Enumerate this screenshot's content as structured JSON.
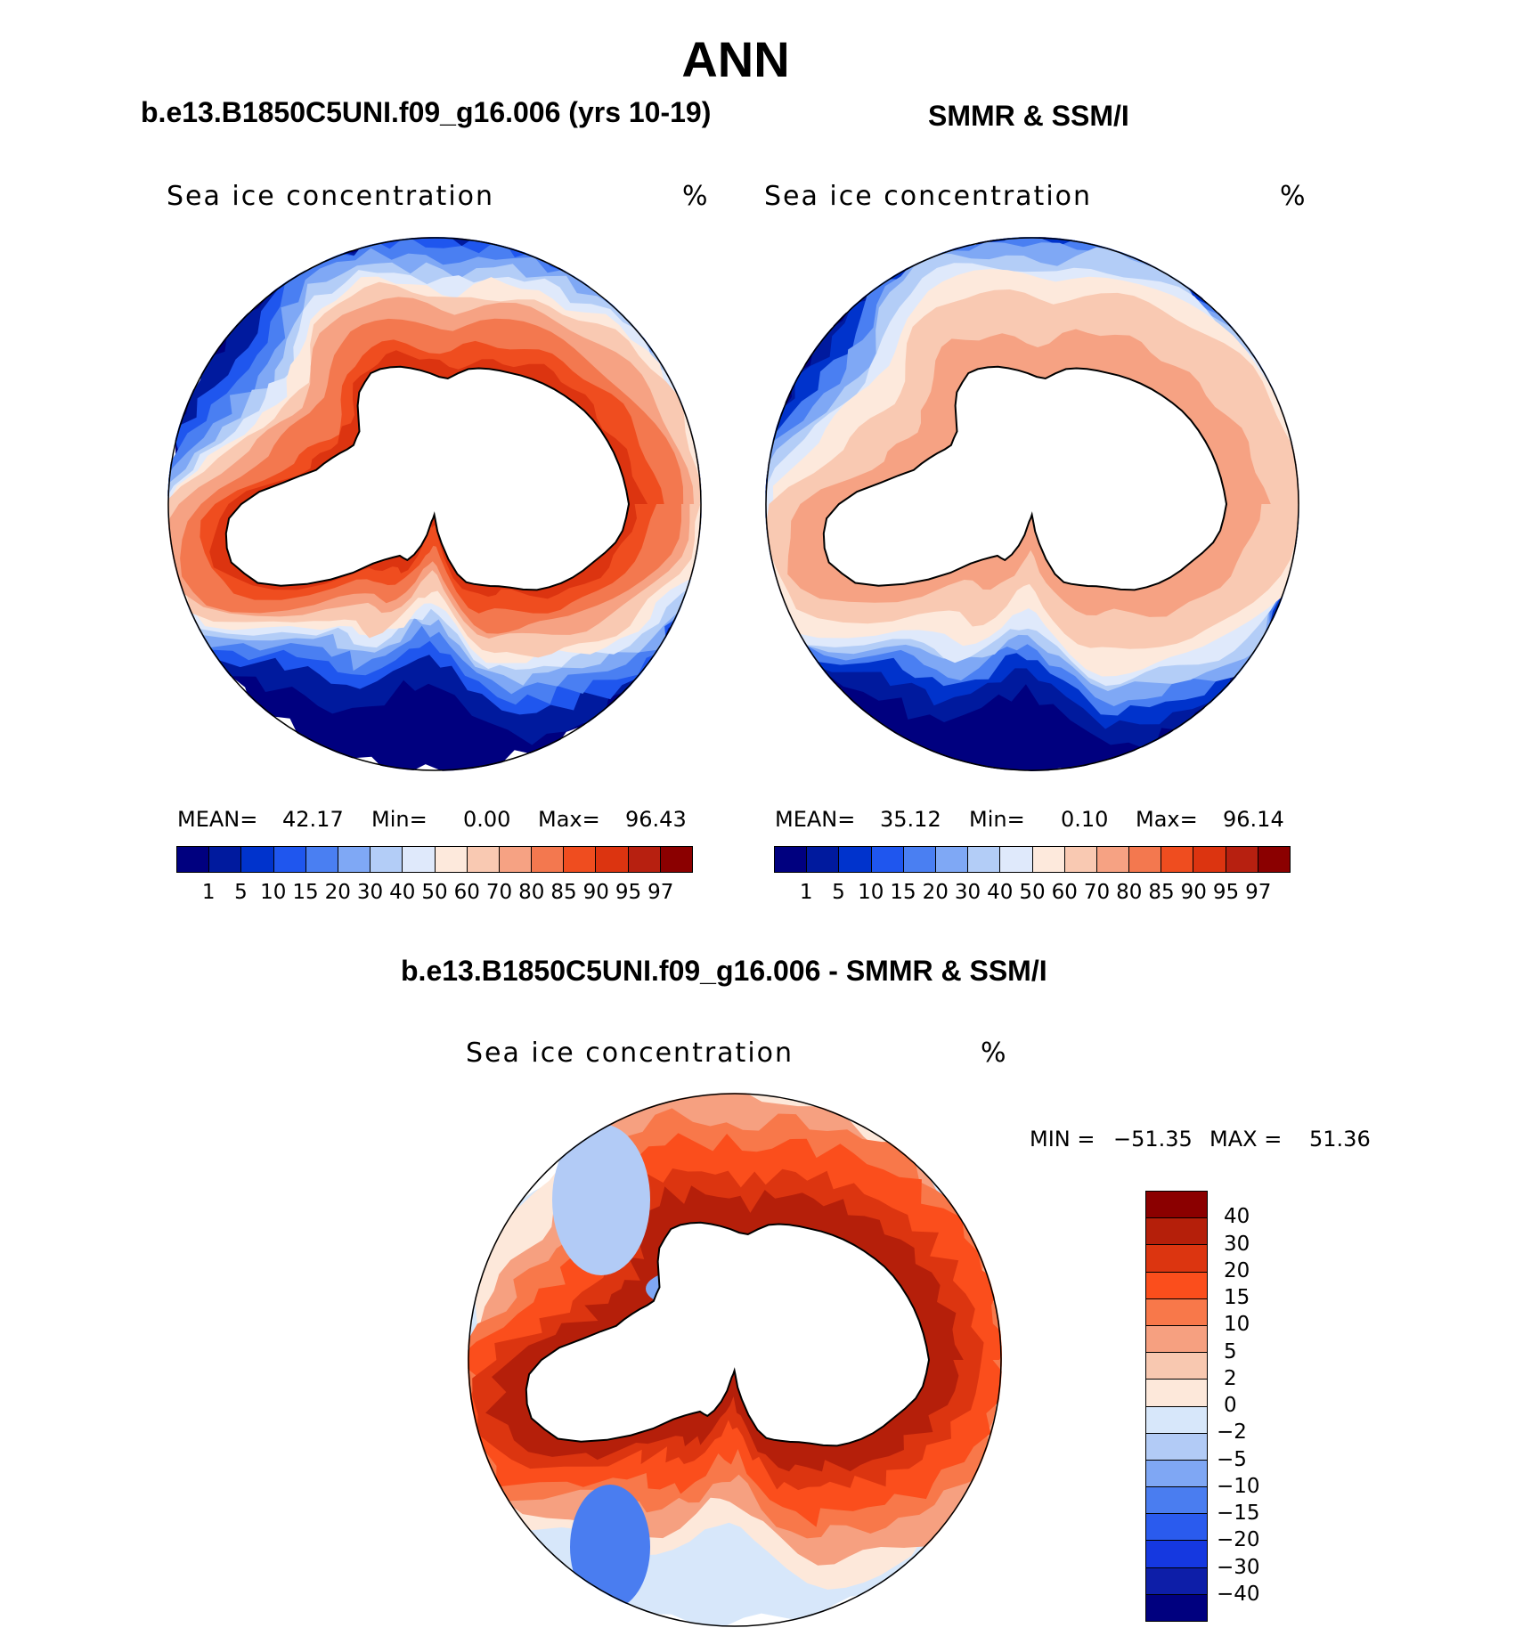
{
  "page_title": "ANN",
  "palettes": {
    "concentration": [
      "#00007f",
      "#001a9e",
      "#0033cc",
      "#1f56ee",
      "#4a7ff2",
      "#7fa8f5",
      "#b3cdf7",
      "#dfe9fb",
      "#fde9dc",
      "#f9c9b2",
      "#f6a283",
      "#f3784f",
      "#ef4d1f",
      "#dc3410",
      "#b72010",
      "#8b0000"
    ],
    "difference": [
      "#8b0000",
      "#b51f0a",
      "#dc3510",
      "#fb4e1c",
      "#f8784a",
      "#f6a080",
      "#f8c8b0",
      "#fde8da",
      "#d7e7fa",
      "#b2cbf6",
      "#7fa7f4",
      "#4a7df0",
      "#2a5bee",
      "#1538e0",
      "#0d1ea8",
      "#00007f"
    ]
  },
  "chart_data": [
    {
      "type": "heatmap",
      "panel": "model",
      "title": "b.e13.B1850C5UNI.f09_g16.006 (yrs 10-19)",
      "variable": "Sea ice concentration",
      "units": "%",
      "stats": {
        "mean_label": "MEAN=",
        "mean": "42.17",
        "min_label": "Min=",
        "min": "0.00",
        "max_label": "Max=",
        "max": "96.43"
      },
      "contour_levels": [
        1,
        5,
        10,
        15,
        20,
        30,
        40,
        50,
        60,
        70,
        80,
        85,
        90,
        95,
        97
      ],
      "colorbar_labels": [
        "1",
        "5",
        "10",
        "15",
        "20",
        "30",
        "40",
        "50",
        "60",
        "70",
        "80",
        "85",
        "90",
        "95",
        "97"
      ]
    },
    {
      "type": "heatmap",
      "panel": "observations",
      "title": "SMMR & SSM/I",
      "variable": "Sea ice concentration",
      "units": "%",
      "stats": {
        "mean_label": "MEAN=",
        "mean": "35.12",
        "min_label": "Min=",
        "min": "0.10",
        "max_label": "Max=",
        "max": "96.14"
      },
      "contour_levels": [
        1,
        5,
        10,
        15,
        20,
        30,
        40,
        50,
        60,
        70,
        80,
        85,
        90,
        95,
        97
      ],
      "colorbar_labels": [
        "1",
        "5",
        "10",
        "15",
        "20",
        "30",
        "40",
        "50",
        "60",
        "70",
        "80",
        "85",
        "90",
        "95",
        "97"
      ]
    },
    {
      "type": "heatmap",
      "panel": "difference",
      "title": "b.e13.B1850C5UNI.f09_g16.006 - SMMR & SSM/I",
      "variable": "Sea ice concentration",
      "units": "%",
      "stats": {
        "min_label": "MIN =",
        "min": "−51.35",
        "max_label": "MAX =",
        "max": "51.36"
      },
      "contour_levels": [
        40,
        30,
        20,
        15,
        10,
        5,
        2,
        0,
        -2,
        -5,
        -10,
        -15,
        -20,
        -30,
        -40
      ],
      "colorbar_labels": [
        "40",
        "30",
        "20",
        "15",
        "10",
        "5",
        "2",
        "0",
        "−2",
        "−5",
        "−10",
        "−15",
        "−20",
        "−30",
        "−40"
      ]
    }
  ]
}
